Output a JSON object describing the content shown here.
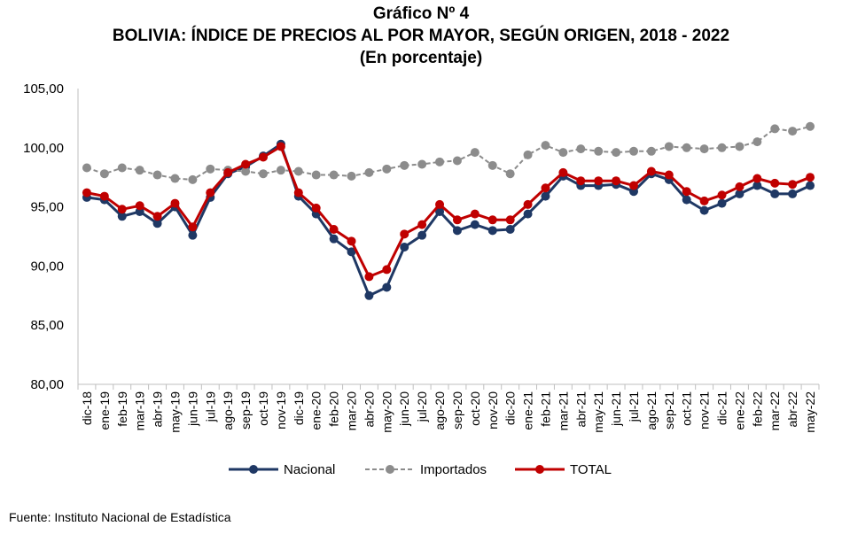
{
  "chart_data": {
    "type": "line",
    "title": "Gráfico Nº 4",
    "subtitle": "BOLIVIA: ÍNDICE DE PRECIOS AL POR MAYOR, SEGÚN ORIGEN, 2018 - 2022",
    "unit_note": "(En porcentaje)",
    "xlabel": "",
    "ylabel": "",
    "ylim": [
      80,
      105
    ],
    "yticks": [
      "80,00",
      "85,00",
      "90,00",
      "95,00",
      "100,00",
      "105,00"
    ],
    "grid": false,
    "legend_position": "bottom",
    "categories": [
      "dic-18",
      "ene-19",
      "feb-19",
      "mar-19",
      "abr-19",
      "may-19",
      "jun-19",
      "jul-19",
      "ago-19",
      "sep-19",
      "oct-19",
      "nov-19",
      "dic-19",
      "ene-20",
      "feb-20",
      "mar-20",
      "abr-20",
      "may-20",
      "jun-20",
      "jul-20",
      "ago-20",
      "sep-20",
      "oct-20",
      "nov-20",
      "dic-20",
      "ene-21",
      "feb-21",
      "mar-21",
      "abr-21",
      "may-21",
      "jun-21",
      "jul-21",
      "ago-21",
      "sep-21",
      "oct-21",
      "nov-21",
      "dic-21",
      "ene-22",
      "feb-22",
      "mar-22",
      "abr-22",
      "may-22"
    ],
    "series": [
      {
        "name": "Nacional",
        "color": "#1f3864",
        "dashed": false,
        "values": [
          95.8,
          95.6,
          94.2,
          94.6,
          93.6,
          95.0,
          92.6,
          95.8,
          97.8,
          98.4,
          99.3,
          100.3,
          95.9,
          94.4,
          92.3,
          91.2,
          87.5,
          88.2,
          91.6,
          92.6,
          94.6,
          93.0,
          93.5,
          93.0,
          93.1,
          94.4,
          95.9,
          97.6,
          96.8,
          96.8,
          96.9,
          96.3,
          97.8,
          97.3,
          95.6,
          94.7,
          95.3,
          96.1,
          96.8,
          96.1,
          96.1,
          96.8
        ]
      },
      {
        "name": "Importados",
        "color": "#8c8c8c",
        "dashed": true,
        "values": [
          98.3,
          97.8,
          98.3,
          98.1,
          97.7,
          97.4,
          97.3,
          98.2,
          98.1,
          98.0,
          97.8,
          98.1,
          98.0,
          97.7,
          97.7,
          97.6,
          97.9,
          98.2,
          98.5,
          98.6,
          98.8,
          98.9,
          99.6,
          98.5,
          97.8,
          99.4,
          100.2,
          99.6,
          99.9,
          99.7,
          99.6,
          99.7,
          99.7,
          100.1,
          100.0,
          99.9,
          100.0,
          100.1,
          100.5,
          101.6,
          101.4,
          101.8
        ]
      },
      {
        "name": "TOTAL",
        "color": "#c00000",
        "dashed": false,
        "values": [
          96.2,
          95.9,
          94.8,
          95.1,
          94.2,
          95.3,
          93.3,
          96.2,
          97.9,
          98.6,
          99.2,
          100.1,
          96.2,
          94.9,
          93.1,
          92.1,
          89.1,
          89.7,
          92.7,
          93.5,
          95.2,
          93.9,
          94.4,
          93.9,
          93.9,
          95.2,
          96.6,
          97.9,
          97.2,
          97.2,
          97.2,
          96.8,
          98.0,
          97.7,
          96.3,
          95.5,
          96.0,
          96.7,
          97.4,
          97.0,
          96.9,
          97.5
        ]
      }
    ]
  },
  "source_text": "Fuente: Instituto Nacional de Estadística"
}
